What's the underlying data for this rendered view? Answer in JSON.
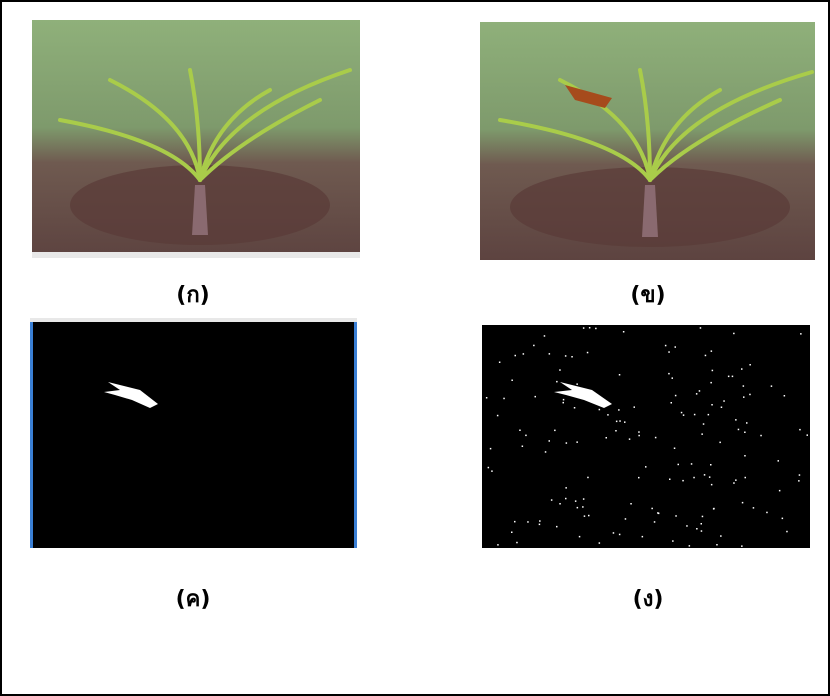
{
  "figure": {
    "panels": [
      {
        "label": "(ก)"
      },
      {
        "label": "(ข)"
      },
      {
        "label": "(ค)"
      },
      {
        "label": "(ง)"
      }
    ]
  }
}
